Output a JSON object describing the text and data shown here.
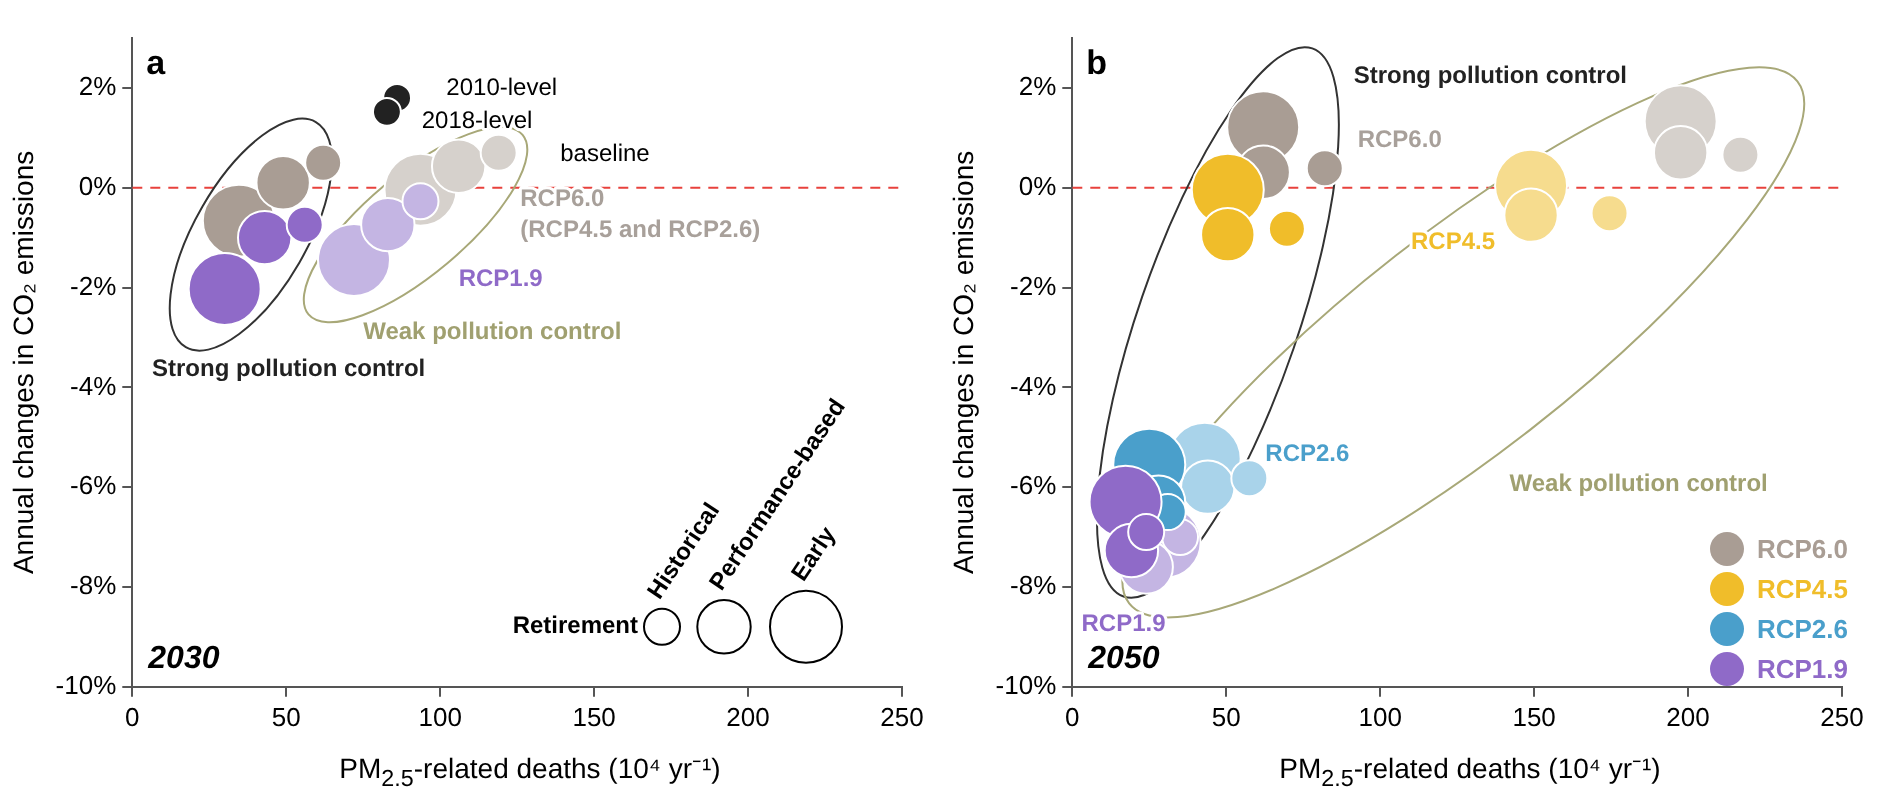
{
  "chart_data": [
    {
      "type": "bubble",
      "title": "a",
      "xlabel": "PM$_{2.5}$-related deaths (10⁴ yr⁻¹)",
      "ylabel": "Annual changes in CO₂ emissions",
      "xlim": [
        0,
        250
      ],
      "xticks": [
        0,
        50,
        100,
        150,
        200,
        250
      ],
      "ylim": [
        -10,
        3
      ],
      "yticks": [
        {
          "value": -10,
          "label": "-10%"
        },
        {
          "value": -8,
          "label": "-8%"
        },
        {
          "value": -6,
          "label": "-6%"
        },
        {
          "value": -4,
          "label": "-4%"
        },
        {
          "value": -2,
          "label": "-2%"
        },
        {
          "value": 0,
          "label": "0%"
        },
        {
          "value": 2,
          "label": "2%"
        }
      ],
      "ref_lines": [
        {
          "axis": "y",
          "value": 0,
          "color": "#e8413c",
          "line_style": "dashed"
        }
      ],
      "size_legend": [
        {
          "value": 0.25,
          "label": "Historical"
        },
        {
          "value": 0.55,
          "label": "Performance-based"
        },
        {
          "value": 1,
          "label": "Early"
        }
      ],
      "series": [
        {
          "color": "#d6d1cc",
          "x": [
            93.6,
            106,
            119
          ],
          "values": [
            -0.04,
            0.43,
            0.7
          ],
          "sizes": [
            1,
            0.55,
            0.25
          ]
        },
        {
          "color": "#c4b5e3",
          "x": [
            72,
            83,
            93.6
          ],
          "values": [
            -1.45,
            -0.74,
            -0.27
          ],
          "sizes": [
            1,
            0.55,
            0.25
          ]
        },
        {
          "color": "#a99d94",
          "x": [
            34.6,
            49,
            62
          ],
          "values": [
            -0.66,
            0.1,
            0.5
          ],
          "sizes": [
            1,
            0.55,
            0.25
          ]
        },
        {
          "color": "#8f6ac8",
          "x": [
            30,
            43,
            56
          ],
          "values": [
            -2.03,
            -1.0,
            -0.74
          ],
          "sizes": [
            1,
            0.55,
            0.25
          ]
        },
        {
          "color": "#222222",
          "x": [
            86,
            82.7
          ],
          "values": [
            1.8,
            1.52
          ],
          "sizes": [
            0.15,
            0.15
          ]
        }
      ],
      "annotations": [
        "2030",
        "Retirement",
        "2010-level",
        "2018-level",
        "baseline",
        "RCP6.0",
        "(RCP4.5 and RCP2.6)",
        "RCP1.9",
        "Weak pollution control",
        "Strong pollution control"
      ]
    },
    {
      "type": "bubble",
      "title": "b",
      "xlabel": "PM$_{2.5}$-related deaths (10⁴ yr⁻¹)",
      "ylabel": "Annual changes in CO₂ emissions",
      "xlim": [
        0,
        250
      ],
      "xticks": [
        0,
        50,
        100,
        150,
        200,
        250
      ],
      "ylim": [
        -10,
        3
      ],
      "yticks": [
        {
          "value": -10,
          "label": "-10%"
        },
        {
          "value": -8,
          "label": "-8%"
        },
        {
          "value": -6,
          "label": "-6%"
        },
        {
          "value": -4,
          "label": "-4%"
        },
        {
          "value": -2,
          "label": "-2%"
        },
        {
          "value": 0,
          "label": "0%"
        },
        {
          "value": 2,
          "label": "2%"
        }
      ],
      "ref_lines": [
        {
          "axis": "y",
          "value": 0,
          "color": "#e8413c",
          "line_style": "dashed"
        }
      ],
      "legend": "bottom right",
      "series": [
        {
          "color": "#d6d1cc",
          "x": [
            197.6,
            197.6,
            217
          ],
          "values": [
            1.33,
            0.7,
            0.66
          ],
          "sizes": [
            1,
            0.55,
            0.25
          ]
        },
        {
          "color": "#f6dc8e",
          "x": [
            149,
            149,
            174.5
          ],
          "values": [
            0.04,
            -0.55,
            -0.51
          ],
          "sizes": [
            1,
            0.55,
            0.25
          ]
        },
        {
          "color": "#a9d3ea",
          "x": [
            43,
            44,
            57.5
          ],
          "values": [
            -5.43,
            -6.0,
            -5.82
          ],
          "sizes": [
            1,
            0.55,
            0.25
          ]
        },
        {
          "color": "#c4b5e3",
          "x": [
            30,
            24,
            35
          ],
          "values": [
            -7.1,
            -7.6,
            -7.0
          ],
          "sizes": [
            1,
            0.55,
            0.25
          ]
        },
        {
          "name": "RCP6.0",
          "color": "#a99d94",
          "x": [
            62,
            62,
            82
          ],
          "values": [
            1.21,
            0.31,
            0.39
          ],
          "sizes": [
            1,
            0.55,
            0.25
          ]
        },
        {
          "name": "RCP4.5",
          "color": "#f0bd2a",
          "x": [
            50.5,
            50.5,
            69.7
          ],
          "values": [
            -0.04,
            -0.94,
            -0.82
          ],
          "sizes": [
            1,
            0.55,
            0.25
          ]
        },
        {
          "name": "RCP2.6",
          "color": "#4a9fcb",
          "x": [
            25,
            28,
            31
          ],
          "values": [
            -5.55,
            -6.3,
            -6.5
          ],
          "sizes": [
            1,
            0.55,
            0.25
          ]
        },
        {
          "name": "RCP1.9",
          "color": "#8f6ac8",
          "x": [
            17.3,
            19.2,
            24
          ],
          "values": [
            -6.29,
            -7.27,
            -6.9
          ],
          "sizes": [
            1,
            0.55,
            0.25
          ]
        }
      ],
      "annotations": [
        "2050",
        "Strong pollution control",
        "RCP6.0",
        "RCP4.5",
        "RCP2.6",
        "Weak pollution control",
        "RCP1.9"
      ]
    }
  ]
}
